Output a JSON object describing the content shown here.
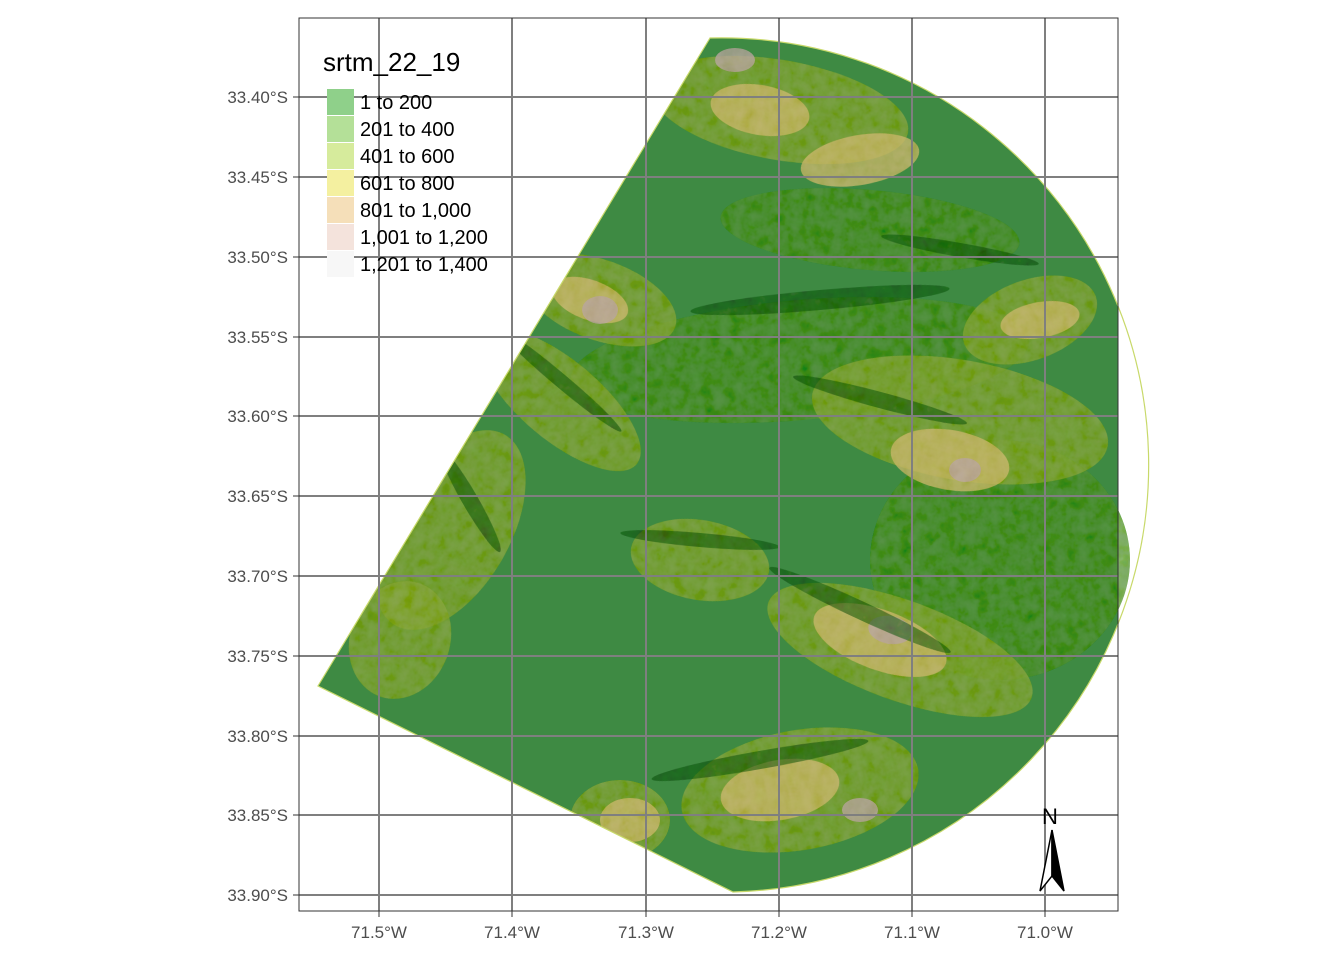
{
  "legend": {
    "title": "srtm_22_19",
    "classes": [
      {
        "label": "1 to 200",
        "color": "#8fd08a"
      },
      {
        "label": "201 to 400",
        "color": "#b4e098"
      },
      {
        "label": "401 to 600",
        "color": "#d6eb9c"
      },
      {
        "label": "601 to 800",
        "color": "#f4f0a0"
      },
      {
        "label": "801 to 1,000",
        "color": "#f5dfb9"
      },
      {
        "label": "1,001 to 1,200",
        "color": "#f4e3dc"
      },
      {
        "label": "1,201 to 1,400",
        "color": "#f7f7f7"
      }
    ]
  },
  "axes": {
    "y_ticks": [
      "33.40°S",
      "33.45°S",
      "33.50°S",
      "33.55°S",
      "33.60°S",
      "33.65°S",
      "33.70°S",
      "33.75°S",
      "33.80°S",
      "33.85°S",
      "33.90°S"
    ],
    "x_ticks": [
      "71.5°W",
      "71.4°W",
      "71.3°W",
      "71.2°W",
      "71.1°W",
      "71.0°W"
    ]
  },
  "north_arrow": {
    "label": "N"
  },
  "colors": {
    "lowland": "#3e8a43",
    "midland": "#5e9447",
    "hills": "#8aa64e",
    "ridge": "#c9b774",
    "peak": "#b9a7a2",
    "shadow": "#2f5e2a",
    "grid": "#7f7f7f"
  }
}
